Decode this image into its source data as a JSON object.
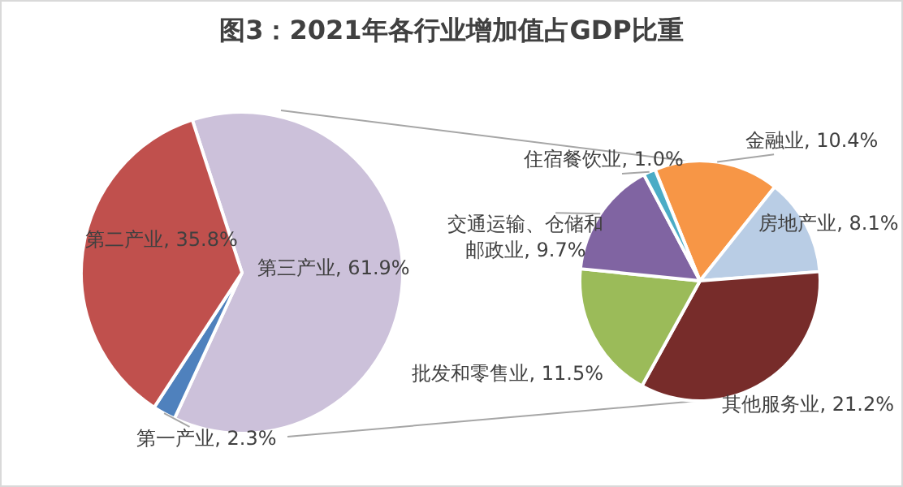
{
  "chart_data": [
    {
      "type": "pie",
      "title": "图3：2021年各行业增加值占GDP比重",
      "categories": [
        "第三产业",
        "第一产业",
        "第二产业"
      ],
      "values": [
        61.9,
        2.3,
        35.8
      ],
      "colors": [
        "#ccc1da",
        "#4f81bd",
        "#c0504d"
      ],
      "value_labels": [
        "61.9%",
        "2.3%",
        "35.8%"
      ],
      "legend": false
    },
    {
      "type": "pie",
      "categories": [
        "金融业",
        "房地产业",
        "其他服务业",
        "批发和零售业",
        "交通运输、仓储和邮政业",
        "住宿餐饮业"
      ],
      "values": [
        10.4,
        8.1,
        21.2,
        11.5,
        9.7,
        1.0
      ],
      "colors": [
        "#f79646",
        "#b9cde5",
        "#772c2a",
        "#9bbb59",
        "#8064a2",
        "#4bacc6"
      ],
      "value_labels": [
        "10.4%",
        "8.1%",
        "21.2%",
        "11.5%",
        "9.7%",
        "1.0%"
      ],
      "legend": false
    }
  ]
}
